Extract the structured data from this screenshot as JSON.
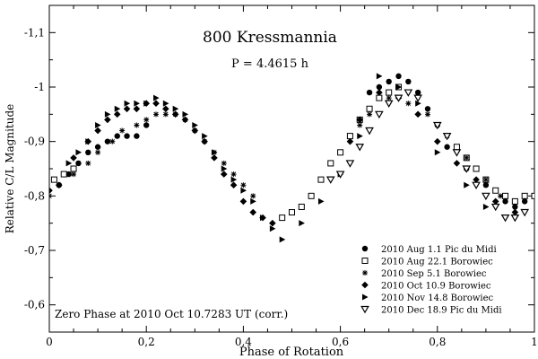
{
  "chart_data": {
    "type": "scatter",
    "title": "800 Kressmannia",
    "subtitle": "P = 4.4615 h",
    "annotation": "Zero Phase at 2010 Oct 10.7283  UT (corr.)",
    "xlabel": "Phase of Rotation",
    "ylabel": "Relative C/L Magnitude",
    "xlim": [
      0,
      1
    ],
    "ylim": [
      -0.55,
      -1.15
    ],
    "x_ticks": [
      "0",
      "0,2",
      "0,4",
      "0,6",
      "0,8",
      "1"
    ],
    "x_tick_values": [
      0,
      0.2,
      0.4,
      0.6,
      0.8,
      1.0
    ],
    "y_ticks": [
      "-1,1",
      "-1",
      "-0,9",
      "-0,8",
      "-0,7",
      "-0,6"
    ],
    "y_tick_values": [
      -1.1,
      -1.0,
      -0.9,
      -0.8,
      -0.7,
      -0.6
    ],
    "legend_position": "bottom-right",
    "series": [
      {
        "name": "2010 Aug 1.1 Pic du Midi",
        "marker": "circle",
        "x": [
          0.02,
          0.04,
          0.06,
          0.08,
          0.1,
          0.12,
          0.14,
          0.16,
          0.18,
          0.2,
          0.66,
          0.68,
          0.7,
          0.72,
          0.74,
          0.76,
          0.78,
          0.8,
          0.82,
          0.86,
          0.9,
          0.94,
          0.96,
          0.98,
          1.0
        ],
        "y": [
          -0.82,
          -0.84,
          -0.86,
          -0.88,
          -0.89,
          -0.9,
          -0.91,
          -0.91,
          -0.91,
          -0.93,
          -0.99,
          -1.0,
          -1.01,
          -1.02,
          -1.01,
          -0.99,
          -0.96,
          -0.93,
          -0.89,
          -0.85,
          -0.82,
          -0.79,
          -0.78,
          -0.79,
          -0.8
        ]
      },
      {
        "name": "2010 Aug 22.1 Borowiec",
        "marker": "square",
        "x": [
          0.01,
          0.03,
          0.05,
          0.48,
          0.5,
          0.52,
          0.54,
          0.56,
          0.58,
          0.6,
          0.62,
          0.64,
          0.66,
          0.68,
          0.7,
          0.72,
          0.84,
          0.86,
          0.88,
          0.9,
          0.92,
          0.94,
          0.96,
          0.98,
          1.0
        ],
        "y": [
          -0.83,
          -0.84,
          -0.85,
          -0.76,
          -0.77,
          -0.78,
          -0.8,
          -0.83,
          -0.86,
          -0.88,
          -0.91,
          -0.94,
          -0.96,
          -0.98,
          -0.99,
          -1.0,
          -0.89,
          -0.87,
          -0.85,
          -0.83,
          -0.81,
          -0.8,
          -0.79,
          -0.8,
          -0.8
        ]
      },
      {
        "name": "2010 Sep 5.1 Borowiec",
        "marker": "asterisk",
        "x": [
          0.0,
          0.02,
          0.05,
          0.08,
          0.1,
          0.13,
          0.15,
          0.18,
          0.2,
          0.22,
          0.24,
          0.26,
          0.28,
          0.3,
          0.32,
          0.34,
          0.36,
          0.38,
          0.4,
          0.42,
          0.64,
          0.66,
          0.7,
          0.74,
          0.78,
          0.82,
          0.86,
          0.9,
          0.93
        ],
        "y": [
          -0.8,
          -0.82,
          -0.84,
          -0.86,
          -0.88,
          -0.9,
          -0.92,
          -0.93,
          -0.94,
          -0.95,
          -0.95,
          -0.95,
          -0.94,
          -0.92,
          -0.9,
          -0.88,
          -0.86,
          -0.84,
          -0.82,
          -0.8,
          -0.93,
          -0.95,
          -0.98,
          -0.97,
          -0.95,
          -0.91,
          -0.87,
          -0.83,
          -0.8
        ]
      },
      {
        "name": "2010 Oct 10.9 Borowiec",
        "marker": "diamond",
        "x": [
          0.0,
          0.02,
          0.05,
          0.08,
          0.1,
          0.12,
          0.14,
          0.16,
          0.18,
          0.2,
          0.22,
          0.24,
          0.26,
          0.28,
          0.3,
          0.32,
          0.34,
          0.36,
          0.38,
          0.4,
          0.42,
          0.44,
          0.46,
          0.62,
          0.64,
          0.68,
          0.72,
          0.76,
          0.8,
          0.84,
          0.88,
          0.92,
          0.96
        ],
        "y": [
          -0.81,
          -0.82,
          -0.87,
          -0.9,
          -0.92,
          -0.94,
          -0.95,
          -0.96,
          -0.96,
          -0.97,
          -0.97,
          -0.96,
          -0.95,
          -0.94,
          -0.92,
          -0.9,
          -0.87,
          -0.84,
          -0.82,
          -0.79,
          -0.77,
          -0.76,
          -0.75,
          -0.9,
          -0.94,
          -0.99,
          -0.98,
          -0.95,
          -0.9,
          -0.86,
          -0.83,
          -0.79,
          -0.77
        ]
      },
      {
        "name": "2010 Nov 14.8 Borowiec",
        "marker": "triangle-right",
        "x": [
          0.04,
          0.06,
          0.08,
          0.1,
          0.12,
          0.14,
          0.16,
          0.18,
          0.2,
          0.22,
          0.24,
          0.26,
          0.28,
          0.3,
          0.32,
          0.34,
          0.36,
          0.38,
          0.4,
          0.42,
          0.44,
          0.46,
          0.48,
          0.52,
          0.56,
          0.6,
          0.64,
          0.68,
          0.72,
          0.76,
          0.8,
          0.86,
          0.9
        ],
        "y": [
          -0.86,
          -0.88,
          -0.9,
          -0.93,
          -0.95,
          -0.96,
          -0.97,
          -0.97,
          -0.97,
          -0.98,
          -0.97,
          -0.96,
          -0.95,
          -0.93,
          -0.91,
          -0.88,
          -0.85,
          -0.83,
          -0.81,
          -0.79,
          -0.76,
          -0.74,
          -0.72,
          -0.75,
          -0.79,
          -0.84,
          -0.91,
          -1.02,
          -1.0,
          -0.97,
          -0.88,
          -0.82,
          -0.78
        ]
      },
      {
        "name": "2010 Dec 18.9 Pic du Midi",
        "marker": "triangle-down",
        "x": [
          0.58,
          0.6,
          0.62,
          0.64,
          0.66,
          0.68,
          0.7,
          0.72,
          0.74,
          0.76,
          0.8,
          0.82,
          0.84,
          0.86,
          0.88,
          0.9,
          0.92,
          0.94,
          0.96,
          0.98
        ],
        "y": [
          -0.83,
          -0.84,
          -0.86,
          -0.89,
          -0.92,
          -0.95,
          -0.97,
          -0.98,
          -0.99,
          -0.98,
          -0.93,
          -0.91,
          -0.88,
          -0.85,
          -0.82,
          -0.8,
          -0.78,
          -0.76,
          -0.76,
          -0.77
        ]
      }
    ]
  }
}
